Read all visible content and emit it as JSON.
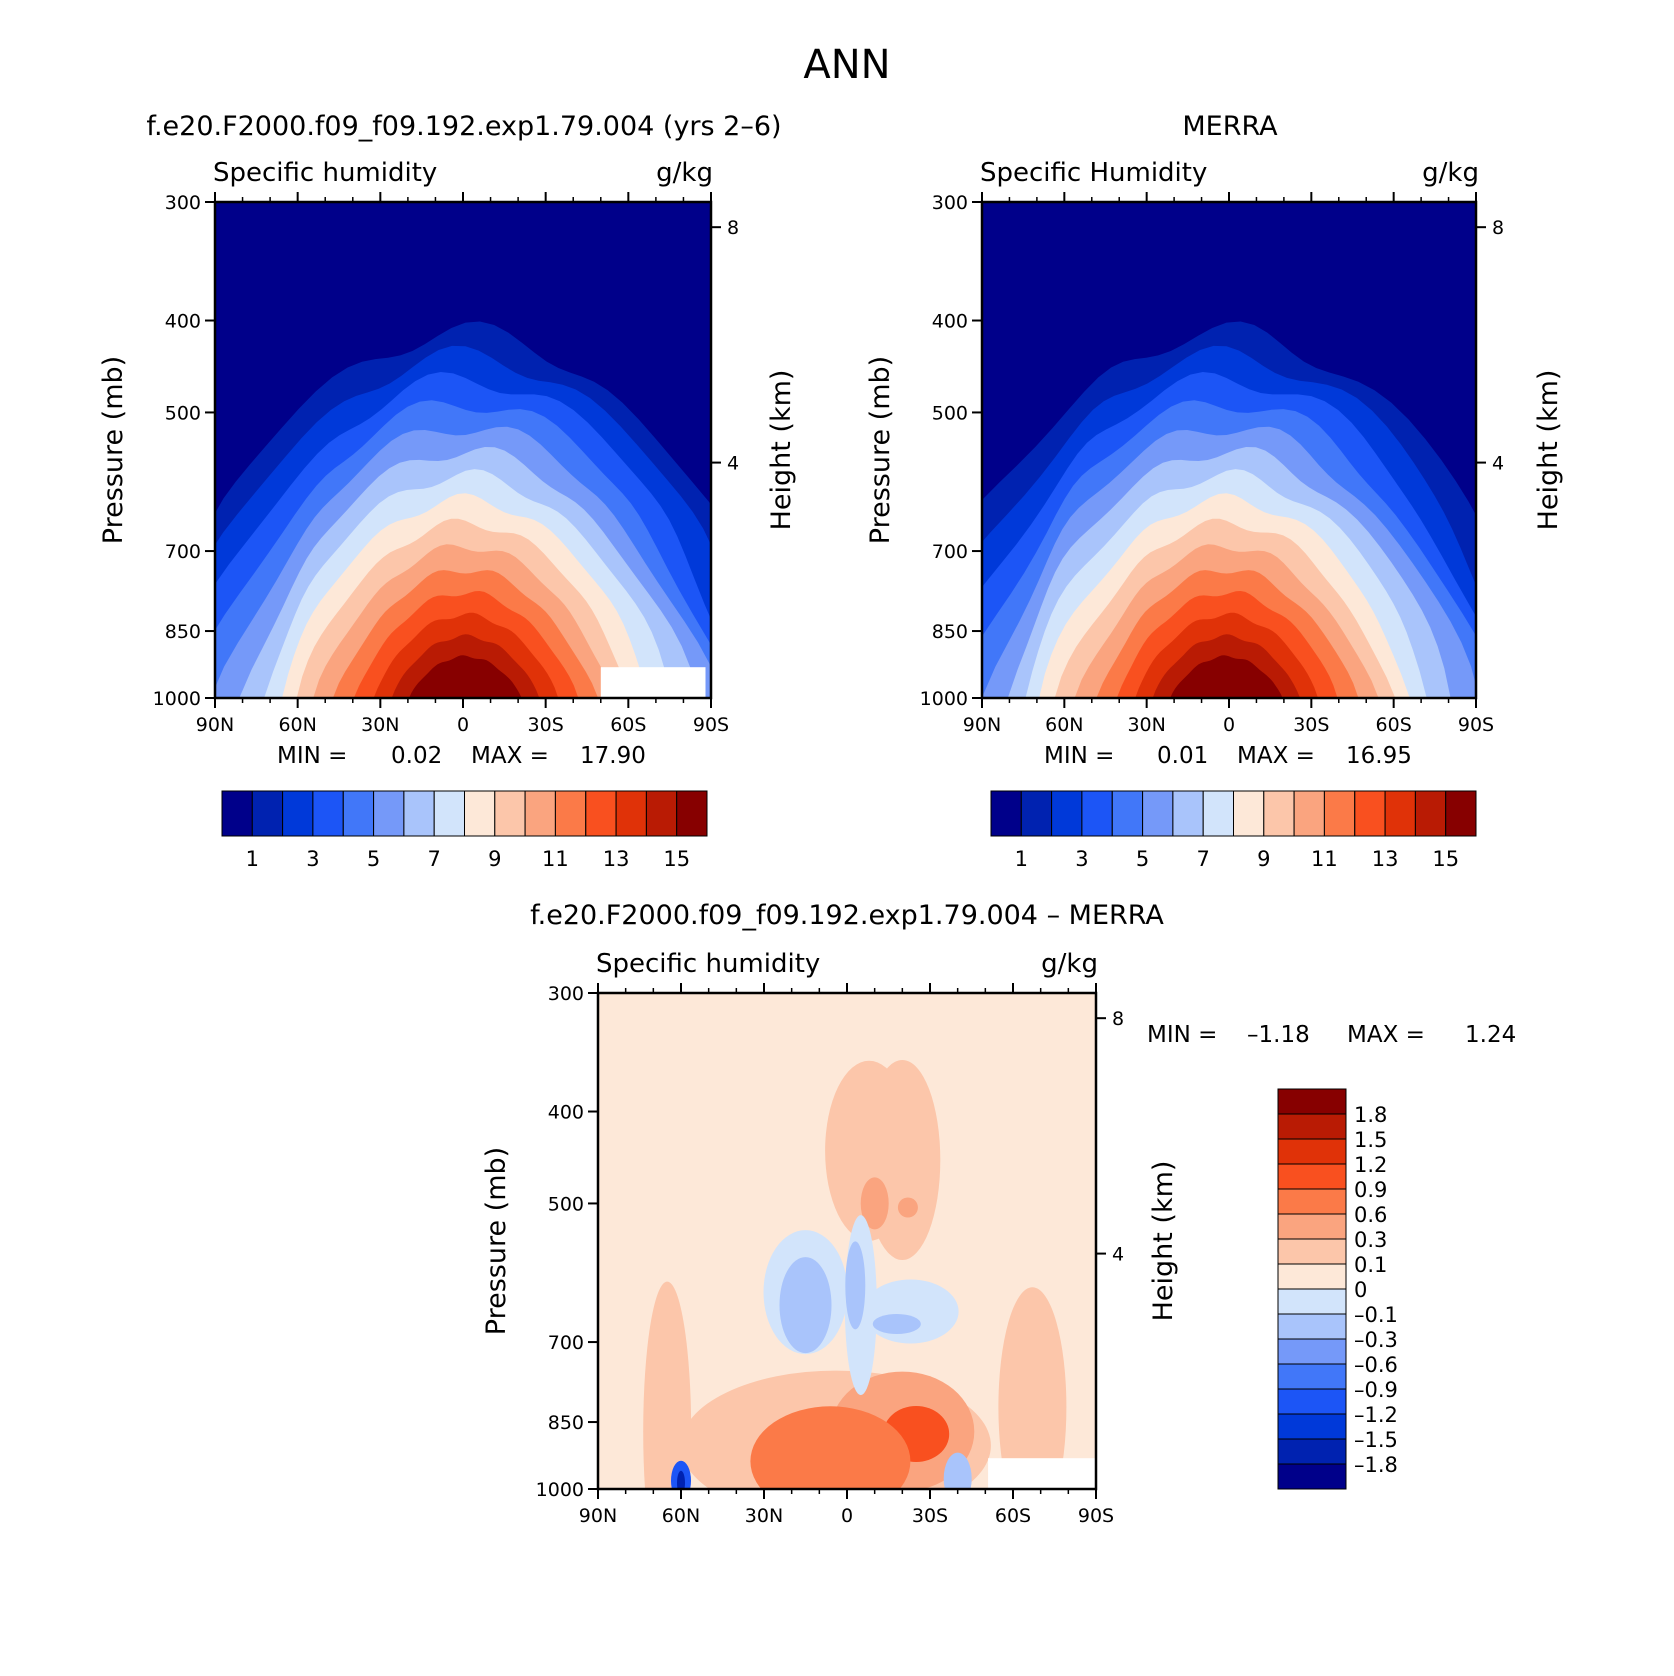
{
  "figure": {
    "title": "ANN"
  },
  "panels": [
    {
      "title": "f.e20.F2000.f09_f09.192.exp1.79.004 (yrs 2–6)",
      "var_label": "Specific humidity",
      "units": "g/kg",
      "ylabel": "Pressure (mb)",
      "y2label": "Height (km)",
      "stats": {
        "min_label": "MIN =",
        "min": "0.02",
        "max_label": "MAX =",
        "max": "17.90"
      }
    },
    {
      "title": "MERRA",
      "var_label": "Specific Humidity",
      "units": "g/kg",
      "ylabel": "Pressure (mb)",
      "y2label": "Height (km)",
      "stats": {
        "min_label": "MIN =",
        "min": "0.01",
        "max_label": "MAX =",
        "max": "16.95"
      }
    },
    {
      "title": "f.e20.F2000.f09_f09.192.exp1.79.004 – MERRA",
      "var_label": "Specific humidity",
      "units": "g/kg",
      "ylabel": "Pressure (mb)",
      "y2label": "Height (km)",
      "stats": {
        "min_label": "MIN =",
        "min": "–1.18",
        "max_label": "MAX =",
        "max": "1.24"
      }
    }
  ],
  "axes": {
    "x_ticks": [
      "90N",
      "60N",
      "30N",
      "0",
      "30S",
      "60S",
      "90S"
    ],
    "x_values": [
      90,
      60,
      30,
      0,
      -30,
      -60,
      -90
    ],
    "y_ticks": [
      "300",
      "400",
      "500",
      "700",
      "850",
      "1000"
    ],
    "y_values": [
      300,
      400,
      500,
      700,
      850,
      1000
    ],
    "y2_ticks": [
      "8",
      "4"
    ],
    "y2_values": [
      8,
      4
    ],
    "ylim": [
      1000,
      300
    ],
    "xlim": [
      90,
      -90
    ],
    "y_scale": "log"
  },
  "colorbars": {
    "abs": {
      "colors": [
        "#00008a",
        "#0022b0",
        "#0039d9",
        "#1c55f6",
        "#4177f9",
        "#7599f9",
        "#a9c4fb",
        "#d2e4fb",
        "#fde8d8",
        "#fcc6aa",
        "#faa47f",
        "#fb7a48",
        "#f9501f",
        "#e03208",
        "#b91b04",
        "#870000"
      ],
      "labels": [
        "1",
        "3",
        "5",
        "7",
        "9",
        "11",
        "13",
        "15"
      ]
    },
    "diff": {
      "colors": [
        "#870000",
        "#b91b04",
        "#e03208",
        "#f9501f",
        "#fb7a48",
        "#faa47f",
        "#fcc6aa",
        "#fde8d8",
        "#d2e4fb",
        "#a9c4fb",
        "#7599f9",
        "#4177f9",
        "#1c55f6",
        "#0039d9",
        "#0022b0",
        "#00008a"
      ],
      "labels": [
        "1.8",
        "1.5",
        "1.2",
        "0.9",
        "0.6",
        "0.3",
        "0.1",
        "0",
        "–0.1",
        "–0.3",
        "–0.6",
        "–0.9",
        "–1.2",
        "–1.5",
        "–1.8"
      ]
    }
  },
  "chart_data": [
    {
      "type": "heatmap",
      "title": "f.e20.F2000.f09_f09.192.exp1.79.004 (yrs 2–6)",
      "xlabel": "",
      "ylabel": "Pressure (mb)",
      "units": "g/kg",
      "x_ticks": [
        90,
        60,
        30,
        0,
        -30,
        -60,
        -90
      ],
      "y_ticks": [
        300,
        400,
        500,
        700,
        850,
        1000
      ],
      "ylim": [
        1000,
        300
      ],
      "y_scale": "log",
      "min": 0.02,
      "max": 17.9,
      "contour_levels": [
        1,
        2,
        3,
        4,
        5,
        6,
        7,
        8,
        9,
        10,
        11,
        12,
        13,
        14,
        15
      ],
      "peak": {
        "lat": -5,
        "pressure_mb": 1000,
        "value": 17.9
      },
      "missing_region": {
        "lat_range": [
          -50,
          -88
        ],
        "pressure_range": [
          925,
          1000
        ]
      }
    },
    {
      "type": "heatmap",
      "title": "MERRA",
      "xlabel": "",
      "ylabel": "Pressure (mb)",
      "units": "g/kg",
      "x_ticks": [
        90,
        60,
        30,
        0,
        -30,
        -60,
        -90
      ],
      "y_ticks": [
        300,
        400,
        500,
        700,
        850,
        1000
      ],
      "ylim": [
        1000,
        300
      ],
      "y_scale": "log",
      "min": 0.01,
      "max": 16.95,
      "contour_levels": [
        1,
        2,
        3,
        4,
        5,
        6,
        7,
        8,
        9,
        10,
        11,
        12,
        13,
        14,
        15
      ],
      "peak": {
        "lat": 0,
        "pressure_mb": 1000,
        "value": 16.95
      }
    },
    {
      "type": "heatmap",
      "title": "f.e20.F2000.f09_f09.192.exp1.79.004 – MERRA",
      "xlabel": "",
      "ylabel": "Pressure (mb)",
      "units": "g/kg",
      "x_ticks": [
        90,
        60,
        30,
        0,
        -30,
        -60,
        -90
      ],
      "y_ticks": [
        300,
        400,
        500,
        700,
        850,
        1000
      ],
      "ylim": [
        1000,
        300
      ],
      "y_scale": "log",
      "min": -1.18,
      "max": 1.24,
      "contour_levels": [
        -1.8,
        -1.5,
        -1.2,
        -0.9,
        -0.6,
        -0.3,
        -0.1,
        0,
        0.1,
        0.3,
        0.6,
        0.9,
        1.2,
        1.5,
        1.8
      ],
      "features": [
        {
          "kind": "positive",
          "lat": -25,
          "pressure_mb": 870,
          "value": 1.24
        },
        {
          "kind": "negative",
          "lat": 60,
          "pressure_mb": 980,
          "value": -1.18
        }
      ]
    }
  ]
}
